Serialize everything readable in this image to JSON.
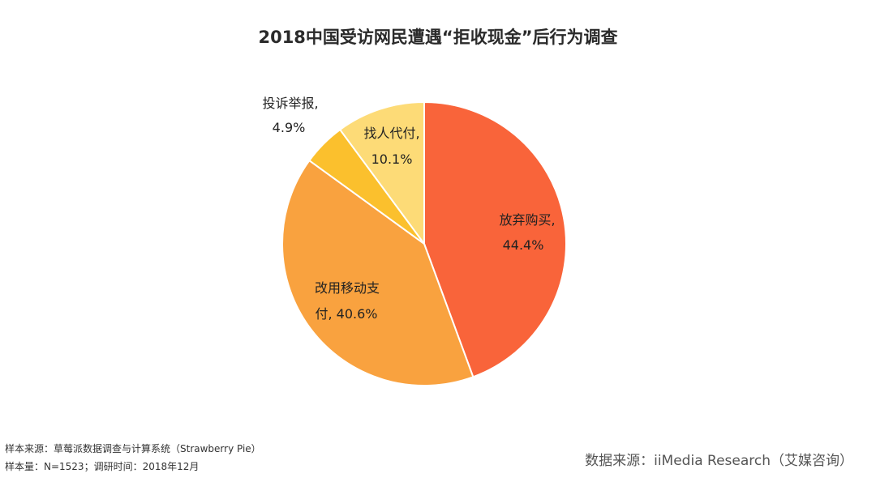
{
  "title": "2018中国受访网民遭遇“拒收现金”后行为调查",
  "chart_data": {
    "type": "pie",
    "slices": [
      {
        "name": "放弃购买,",
        "value": 44.4,
        "label": "44.4%",
        "color": "#f9643a"
      },
      {
        "name": "改用移动支",
        "name2": "付, 40.6%",
        "value": 40.6,
        "label": "",
        "color": "#f9a23f"
      },
      {
        "name": "投诉举报,",
        "value": 4.9,
        "label": "4.9%",
        "color": "#fbc02d"
      },
      {
        "name": "找人代付,",
        "value": 10.1,
        "label": "10.1%",
        "color": "#fddb77"
      }
    ]
  },
  "footer": {
    "sample_source": "样本来源：草莓派数据调查与计算系统（Strawberry Pie）",
    "sample_info": "样本量：N=1523；调研时间：2018年12月",
    "data_source": "数据来源：iiMedia Research（艾媒咨询）"
  }
}
